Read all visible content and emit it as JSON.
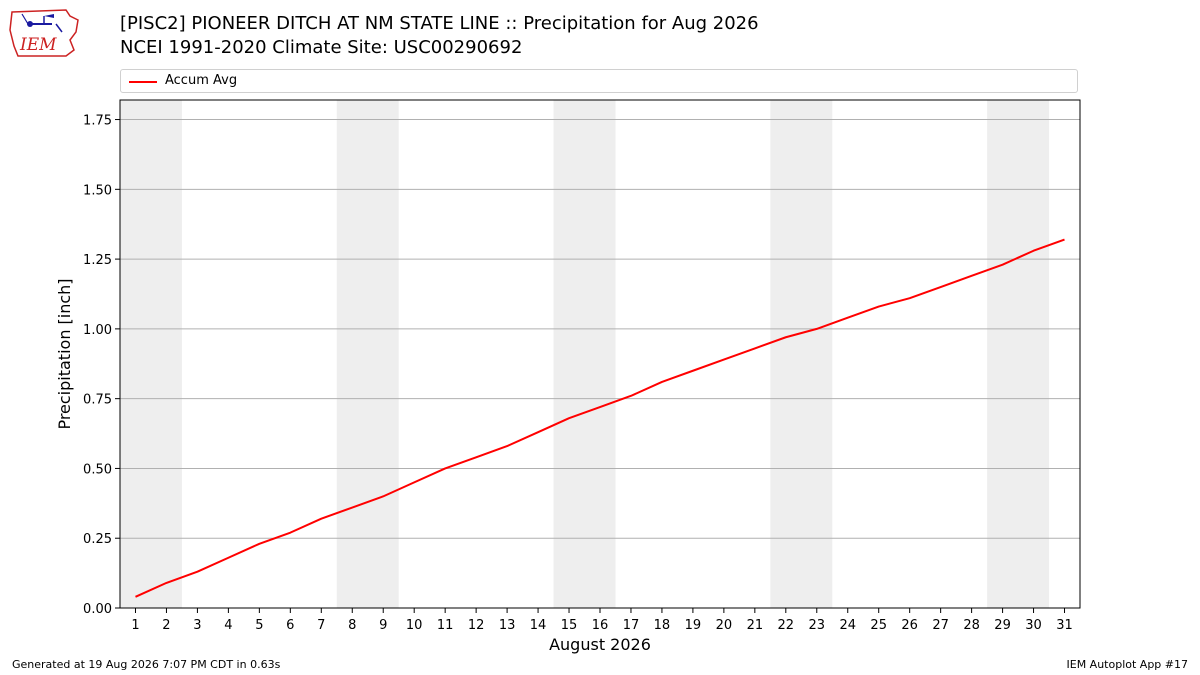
{
  "header": {
    "title_line1": "[PISC2] PIONEER DITCH AT NM STATE LINE :: Precipitation for Aug 2026",
    "title_line2": "NCEI 1991-2020 Climate Site: USC00290692",
    "logo_text": "IEM"
  },
  "footer": {
    "generated": "Generated at 19 Aug 2026 7:07 PM CDT in 0.63s",
    "app": "IEM Autoplot App #17"
  },
  "colors": {
    "series": "#ff0000",
    "weekend_band": "#eeeeee",
    "grid": "#b0b0b0",
    "logo_red": "#cc2222",
    "logo_blue": "#1a1aa0"
  },
  "chart_data": {
    "type": "line",
    "xlabel": "August 2026",
    "ylabel": "Precipitation [inch]",
    "x": [
      1,
      2,
      3,
      4,
      5,
      6,
      7,
      8,
      9,
      10,
      11,
      12,
      13,
      14,
      15,
      16,
      17,
      18,
      19,
      20,
      21,
      22,
      23,
      24,
      25,
      26,
      27,
      28,
      29,
      30,
      31
    ],
    "xlim": [
      0.5,
      31.5
    ],
    "ylim": [
      0,
      1.82
    ],
    "yticks": [
      0.0,
      0.25,
      0.5,
      0.75,
      1.0,
      1.25,
      1.5,
      1.75
    ],
    "ytick_labels": [
      "0.00",
      "0.25",
      "0.50",
      "0.75",
      "1.00",
      "1.25",
      "1.50",
      "1.75"
    ],
    "grid": "y",
    "legend_position": "top",
    "shaded_day_spans": [
      [
        1,
        2
      ],
      [
        8,
        9
      ],
      [
        15,
        16
      ],
      [
        22,
        23
      ],
      [
        29,
        30
      ]
    ],
    "series": [
      {
        "name": "Accum Avg",
        "values": [
          0.04,
          0.09,
          0.13,
          0.18,
          0.23,
          0.27,
          0.32,
          0.36,
          0.4,
          0.45,
          0.5,
          0.54,
          0.58,
          0.63,
          0.68,
          0.72,
          0.76,
          0.81,
          0.85,
          0.89,
          0.93,
          0.97,
          1.0,
          1.04,
          1.08,
          1.11,
          1.15,
          1.19,
          1.23,
          1.28,
          1.32
        ]
      }
    ]
  }
}
